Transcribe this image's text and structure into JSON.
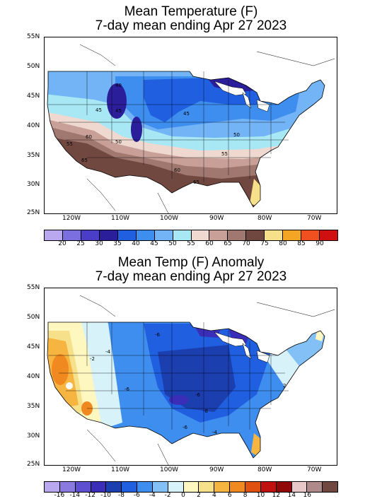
{
  "panel1": {
    "title_line1": "Mean Temperature (F)",
    "title_line2": "7-day mean ending Apr 27 2023",
    "lat_labels": [
      "55N",
      "50N",
      "45N",
      "40N",
      "35N",
      "30N",
      "25N"
    ],
    "lon_labels": [
      "120W",
      "110W",
      "100W",
      "90W",
      "80W",
      "70W"
    ],
    "contour_labels": [
      "40",
      "45",
      "45",
      "50",
      "50",
      "55",
      "55",
      "60",
      "60",
      "65",
      "65",
      "45"
    ],
    "legend": {
      "labels": [
        "20",
        "25",
        "30",
        "35",
        "40",
        "45",
        "50",
        "55",
        "60",
        "65",
        "70",
        "75",
        "80",
        "85",
        "90"
      ],
      "colors": [
        "#b9a8f0",
        "#7b6fe0",
        "#4a3ec8",
        "#2a1e9a",
        "#1f5fe0",
        "#3e8ef0",
        "#72b4f5",
        "#a8e8f5",
        "#eed8cf",
        "#c8a098",
        "#a07870",
        "#704840",
        "#f7e08a",
        "#f5a524",
        "#f05020",
        "#d01010"
      ]
    }
  },
  "panel2": {
    "title_line1": "Mean Temp (F) Anomaly",
    "title_line2": "7-day mean ending Apr 27 2023",
    "lat_labels": [
      "55N",
      "50N",
      "45N",
      "40N",
      "35N",
      "30N",
      "25N"
    ],
    "lon_labels": [
      "120W",
      "110W",
      "100W",
      "90W",
      "80W",
      "70W"
    ],
    "contour_labels": [
      "-6",
      "-4",
      "-2",
      "-6",
      "-6",
      "-8",
      "-6",
      "-4",
      "2"
    ],
    "legend": {
      "labels": [
        "-16",
        "-14",
        "-12",
        "-10",
        "-8",
        "-6",
        "-4",
        "-2",
        "0",
        "2",
        "4",
        "6",
        "8",
        "10",
        "12",
        "14",
        "16"
      ],
      "colors": [
        "#b9a8f0",
        "#8a7ae0",
        "#5d4fd0",
        "#3a2eb8",
        "#1c3fb0",
        "#1f5fe0",
        "#3e8ef0",
        "#82c0f5",
        "#d8f2fa",
        "#fff7c0",
        "#f7e08a",
        "#f5b540",
        "#f08a20",
        "#e05010",
        "#c01010",
        "#900808",
        "#e8c8c8",
        "#b08a8a",
        "#704840"
      ]
    }
  }
}
